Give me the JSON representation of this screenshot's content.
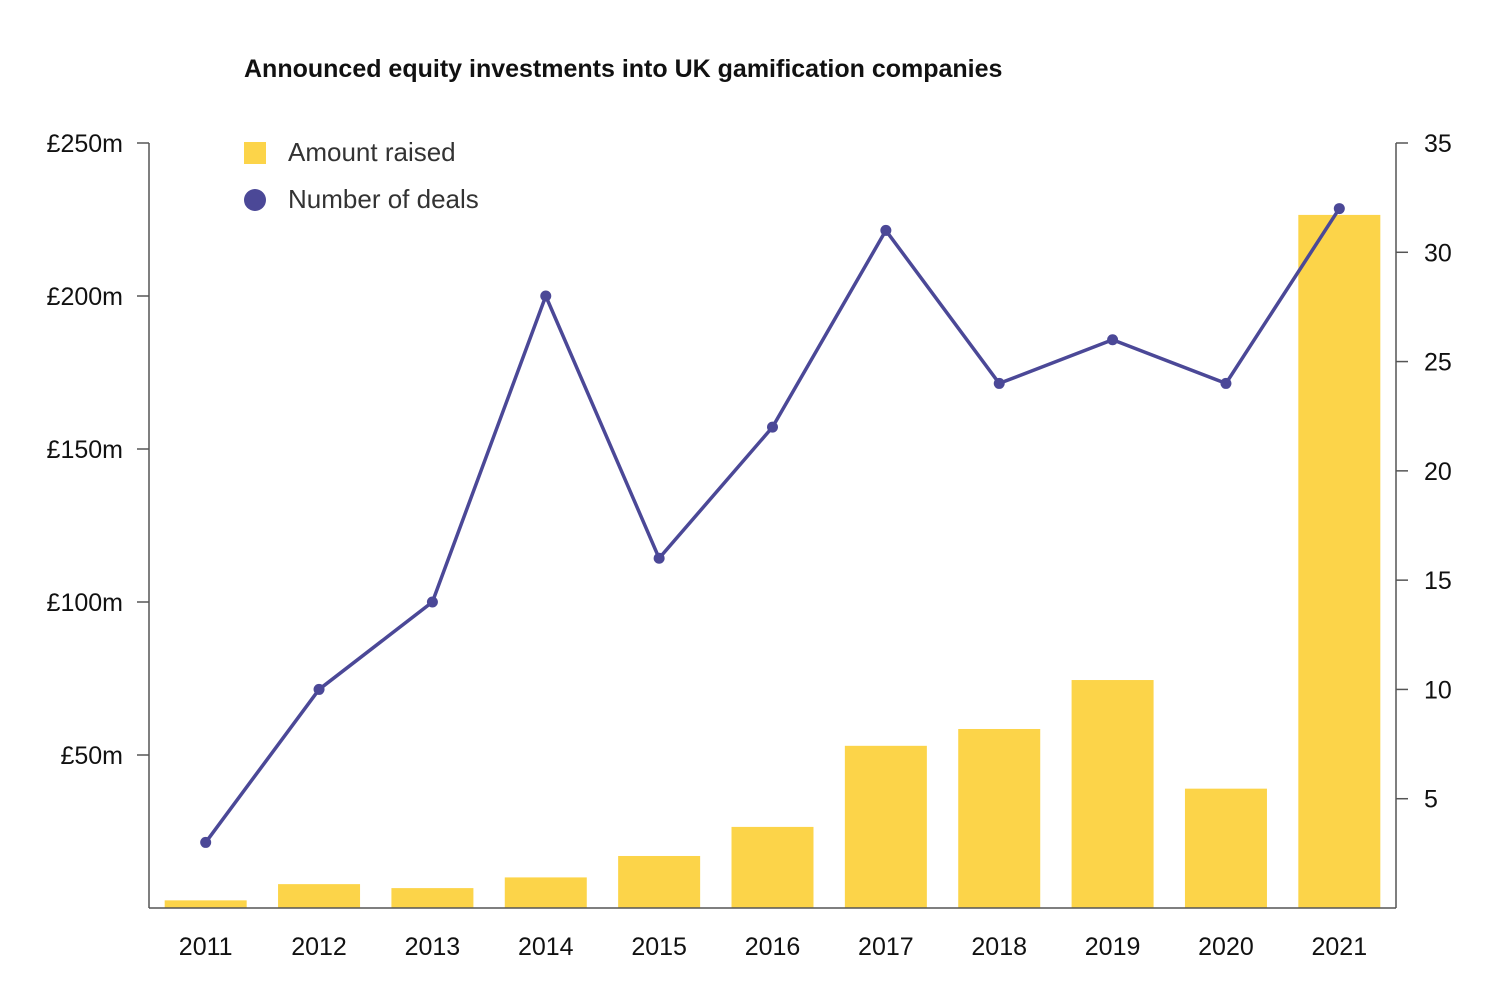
{
  "chart_data": {
    "type": "bar",
    "title": "Announced equity investments into UK gamification companies",
    "categories": [
      "2011",
      "2012",
      "2013",
      "2014",
      "2015",
      "2016",
      "2017",
      "2018",
      "2019",
      "2020",
      "2021"
    ],
    "series": [
      {
        "name": "Amount raised",
        "type": "bar",
        "axis": "left",
        "color": "#FCD449",
        "values": [
          2.5,
          7.8,
          6.5,
          10,
          17,
          26.5,
          53,
          58.5,
          74.5,
          39,
          226.5
        ]
      },
      {
        "name": "Number of deals",
        "type": "line",
        "axis": "right",
        "color": "#4B4897",
        "values": [
          3,
          10,
          14,
          28,
          16,
          22,
          31,
          24,
          26,
          24,
          32
        ]
      }
    ],
    "y_left": {
      "ylim": [
        0,
        250
      ],
      "ticks": [
        50,
        100,
        150,
        200,
        250
      ],
      "tick_labels": [
        "£50m",
        "£100m",
        "£150m",
        "£200m",
        "£250m"
      ]
    },
    "y_right": {
      "ylim": [
        0,
        35
      ],
      "ticks": [
        5,
        10,
        15,
        20,
        25,
        30,
        35
      ],
      "tick_labels": [
        "5",
        "10",
        "15",
        "20",
        "25",
        "30",
        "35"
      ]
    },
    "legend_position": "top-left",
    "grid": false,
    "axis_color": "#555555"
  }
}
